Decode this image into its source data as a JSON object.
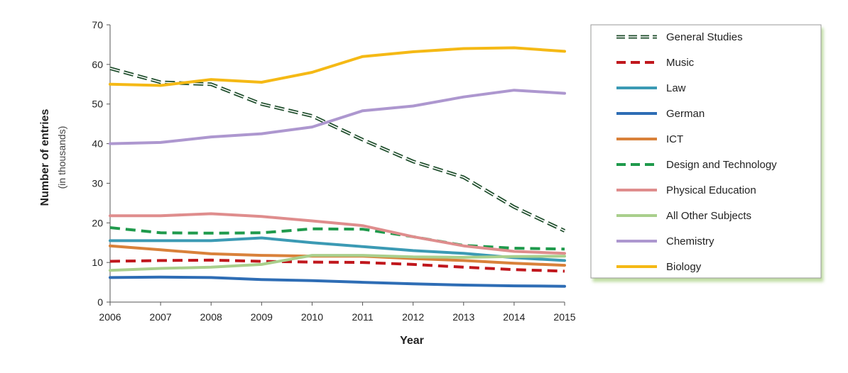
{
  "chart_data": {
    "type": "line",
    "title": "",
    "xlabel": "Year",
    "ylabel": "Number of entries",
    "ylabel_sub": "(in thousands)",
    "x": [
      2006,
      2007,
      2008,
      2009,
      2010,
      2011,
      2012,
      2013,
      2014,
      2015
    ],
    "ylim": [
      0,
      70
    ],
    "yticks": [
      0,
      10,
      20,
      30,
      40,
      50,
      60,
      70
    ],
    "grid": false,
    "legend_position": "right",
    "series": [
      {
        "name": "General Studies",
        "color": "#1e4d2b",
        "style": "double-dash",
        "values": [
          59,
          55.5,
          55,
          50,
          47,
          41,
          35.5,
          31.5,
          24,
          18
        ]
      },
      {
        "name": "Music",
        "color": "#c0171d",
        "style": "dash",
        "values": [
          10.3,
          10.5,
          10.6,
          10.3,
          10.1,
          10,
          9.5,
          8.8,
          8.2,
          7.8
        ]
      },
      {
        "name": "Law",
        "color": "#3b9ab4",
        "style": "solid",
        "values": [
          15.5,
          15.5,
          15.5,
          16.2,
          15,
          14,
          13,
          12.3,
          11.2,
          10.5
        ]
      },
      {
        "name": "German",
        "color": "#2e6db5",
        "style": "solid",
        "values": [
          6.2,
          6.3,
          6.2,
          5.7,
          5.4,
          5,
          4.6,
          4.3,
          4.1,
          4
        ]
      },
      {
        "name": "ICT",
        "color": "#d9813a",
        "style": "solid",
        "values": [
          14.2,
          13.2,
          12.2,
          11.8,
          11.6,
          11.6,
          11,
          10.5,
          9.8,
          9.3
        ]
      },
      {
        "name": "Design and Technology",
        "color": "#1f9a4c",
        "style": "dash",
        "values": [
          18.8,
          17.5,
          17.4,
          17.5,
          18.5,
          18.4,
          16.5,
          14.3,
          13.6,
          13.4
        ]
      },
      {
        "name": "Physical Education",
        "color": "#df8d8d",
        "style": "solid",
        "values": [
          21.8,
          21.8,
          22.3,
          21.6,
          20.5,
          19.3,
          16.5,
          14.2,
          12.8,
          12.3
        ]
      },
      {
        "name": "All Other Subjects",
        "color": "#a9cf8c",
        "style": "solid",
        "values": [
          8,
          8.5,
          8.8,
          9.5,
          11.8,
          11.8,
          11.4,
          11.3,
          11.5,
          11.6
        ]
      },
      {
        "name": "Chemistry",
        "color": "#ad97cf",
        "style": "solid",
        "values": [
          40,
          40.3,
          41.7,
          42.5,
          44.2,
          48.3,
          49.5,
          51.8,
          53.5,
          52.7
        ]
      },
      {
        "name": "Biology",
        "color": "#f5b915",
        "style": "solid",
        "values": [
          55,
          54.7,
          56.2,
          55.5,
          58,
          62,
          63.2,
          64,
          64.2,
          63.3
        ]
      }
    ]
  }
}
